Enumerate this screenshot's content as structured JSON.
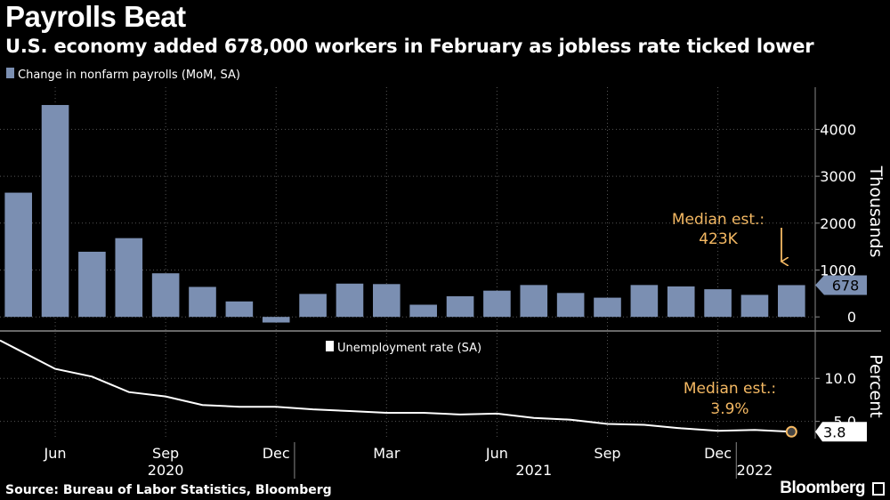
{
  "header": {
    "title": "Payrolls Beat",
    "subtitle": "U.S. economy added 678,000 workers in February as jobless rate ticked lower"
  },
  "footer": {
    "source": "Source: Bureau of Labor Statistics, Bloomberg",
    "brand": "Bloomberg"
  },
  "colors": {
    "background": "#000000",
    "bar": "#7b8fb2",
    "line": "#ffffff",
    "annotation": "#f5b963",
    "grid": "#555555"
  },
  "chart_data": [
    {
      "type": "bar",
      "legend": "Change in nonfarm payrolls (MoM, SA)",
      "ylabel": "Thousands",
      "ylim": [
        -300,
        4900
      ],
      "yticks": [
        0,
        1000,
        2000,
        3000,
        4000
      ],
      "ytick_labels": [
        "0",
        "1000",
        "2000",
        "3000",
        "4000"
      ],
      "categories": [
        "2020-05",
        "2020-06",
        "2020-07",
        "2020-08",
        "2020-09",
        "2020-10",
        "2020-11",
        "2020-12",
        "2021-01",
        "2021-02",
        "2021-03",
        "2021-04",
        "2021-05",
        "2021-06",
        "2021-07",
        "2021-08",
        "2021-09",
        "2021-10",
        "2021-11",
        "2021-12",
        "2022-01",
        "2022-02"
      ],
      "values": [
        2650,
        4520,
        1390,
        1680,
        930,
        640,
        330,
        -120,
        490,
        710,
        700,
        260,
        440,
        560,
        680,
        510,
        410,
        680,
        650,
        590,
        470,
        678
      ],
      "last_value_label": "678",
      "annotation": {
        "line1": "Median est.:",
        "line2": "423K"
      }
    },
    {
      "type": "line",
      "legend": "Unemployment rate (SA)",
      "ylabel": "Percent",
      "ylim": [
        3.0,
        15.5
      ],
      "yticks": [
        5.0,
        10.0
      ],
      "ytick_labels": [
        "5.0",
        "10.0"
      ],
      "x": [
        "2020-05",
        "2020-06",
        "2020-07",
        "2020-08",
        "2020-09",
        "2020-10",
        "2020-11",
        "2020-12",
        "2021-01",
        "2021-02",
        "2021-03",
        "2021-04",
        "2021-05",
        "2021-06",
        "2021-07",
        "2021-08",
        "2021-09",
        "2021-10",
        "2021-11",
        "2021-12",
        "2022-01",
        "2022-02"
      ],
      "values": [
        13.3,
        11.1,
        10.2,
        8.4,
        7.9,
        6.9,
        6.7,
        6.7,
        6.4,
        6.2,
        6.0,
        6.0,
        5.8,
        5.9,
        5.4,
        5.2,
        4.7,
        4.6,
        4.2,
        3.9,
        4.0,
        3.8
      ],
      "last_value_label": "3.8",
      "annotation": {
        "line1": "Median est.:",
        "line2": "3.9%"
      }
    }
  ],
  "x_axis": {
    "month_ticks": [
      {
        "month": "2020-06",
        "label": "Jun"
      },
      {
        "month": "2020-09",
        "label": "Sep"
      },
      {
        "month": "2020-12",
        "label": "Dec"
      },
      {
        "month": "2021-03",
        "label": "Mar"
      },
      {
        "month": "2021-06",
        "label": "Jun"
      },
      {
        "month": "2021-09",
        "label": "Sep"
      },
      {
        "month": "2021-12",
        "label": "Dec"
      }
    ],
    "years": [
      {
        "label": "2020",
        "center_month": "2020-09"
      },
      {
        "label": "2021",
        "center_month": "2021-07"
      },
      {
        "label": "2022",
        "center_month": "2022-01"
      }
    ]
  }
}
